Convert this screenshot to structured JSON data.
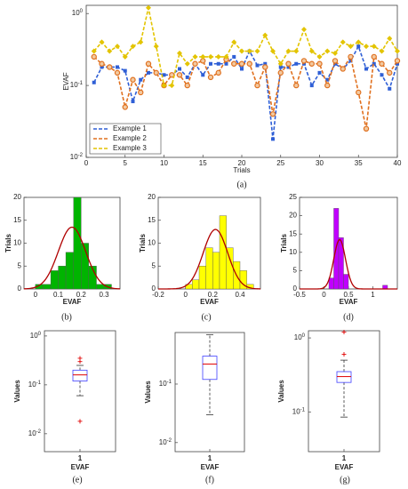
{
  "chart_data": [
    {
      "type": "line",
      "caption": "(a)",
      "xlabel": "Trials",
      "ylabel": "EVAF",
      "x": [
        1,
        2,
        3,
        4,
        5,
        6,
        7,
        8,
        9,
        10,
        11,
        12,
        13,
        14,
        15,
        16,
        17,
        18,
        19,
        20,
        21,
        22,
        23,
        24,
        25,
        26,
        27,
        28,
        29,
        30,
        31,
        32,
        33,
        34,
        35,
        36,
        37,
        38,
        39,
        40
      ],
      "xlim": [
        0,
        40
      ],
      "xticks": [
        0,
        5,
        10,
        15,
        20,
        25,
        30,
        35,
        40
      ],
      "ylim": [
        0.01,
        1.3
      ],
      "log_y": true,
      "yticks": [
        {
          "value": 0.01,
          "label": "10",
          "exponent": "-2"
        },
        {
          "value": 0.1,
          "label": "10",
          "exponent": "-1"
        },
        {
          "value": 1,
          "label": "10",
          "exponent": "0"
        }
      ],
      "legend": "lower left",
      "series": [
        {
          "name": "Example 1",
          "color": "#2f5fd6",
          "marker": "square",
          "values": [
            0.11,
            0.18,
            0.18,
            0.18,
            0.16,
            0.06,
            0.12,
            0.15,
            0.15,
            0.14,
            0.14,
            0.17,
            0.13,
            0.2,
            0.14,
            0.2,
            0.2,
            0.2,
            0.25,
            0.17,
            0.3,
            0.19,
            0.2,
            0.018,
            0.18,
            0.18,
            0.2,
            0.2,
            0.1,
            0.15,
            0.12,
            0.2,
            0.17,
            0.22,
            0.35,
            0.17,
            0.2,
            0.14,
            0.09,
            0.2
          ]
        },
        {
          "name": "Example 2",
          "color": "#e0701e",
          "marker": "circle",
          "values": [
            0.25,
            0.2,
            0.18,
            0.15,
            0.05,
            0.12,
            0.08,
            0.2,
            0.15,
            0.1,
            0.14,
            0.14,
            0.1,
            0.2,
            0.22,
            0.13,
            0.15,
            0.23,
            0.2,
            0.2,
            0.2,
            0.1,
            0.18,
            0.04,
            0.15,
            0.2,
            0.1,
            0.22,
            0.2,
            0.2,
            0.1,
            0.22,
            0.17,
            0.25,
            0.08,
            0.025,
            0.25,
            0.2,
            0.15,
            0.22
          ]
        },
        {
          "name": "Example 3",
          "color": "#e3c400",
          "marker": "diamond",
          "values": [
            0.3,
            0.4,
            0.3,
            0.35,
            0.25,
            0.35,
            0.4,
            1.2,
            0.35,
            0.1,
            0.1,
            0.28,
            0.2,
            0.25,
            0.25,
            0.25,
            0.25,
            0.25,
            0.4,
            0.3,
            0.3,
            0.3,
            0.5,
            0.3,
            0.2,
            0.3,
            0.3,
            0.6,
            0.3,
            0.25,
            0.3,
            0.28,
            0.4,
            0.35,
            0.4,
            0.35,
            0.35,
            0.3,
            0.45,
            0.3
          ]
        }
      ]
    },
    {
      "type": "histogram",
      "caption": "(b)",
      "xlabel": "EVAF",
      "ylabel": "Trials",
      "color": "#00b400",
      "bins": [
        0,
        0.033,
        0.067,
        0.1,
        0.133,
        0.167,
        0.2,
        0.233,
        0.267,
        0.3,
        0.333
      ],
      "values": [
        1,
        1,
        4,
        5,
        8,
        20,
        10,
        5,
        1,
        1
      ],
      "xlim": [
        -0.05,
        0.37
      ],
      "xticks": [
        0,
        0.1,
        0.2,
        0.3
      ],
      "ylim": [
        0,
        20
      ],
      "yticks": [
        0,
        5,
        10,
        15,
        20
      ],
      "fit": {
        "color": "#b00000",
        "mean": 0.16,
        "sd": 0.06,
        "peak": 13.5
      }
    },
    {
      "type": "histogram",
      "caption": "(c)",
      "xlabel": "EVAF",
      "ylabel": "Trials",
      "color": "#ffff00",
      "bins": [
        0,
        0.05,
        0.1,
        0.15,
        0.2,
        0.25,
        0.3,
        0.35,
        0.4,
        0.45,
        0.5
      ],
      "values": [
        1,
        2,
        5,
        9,
        8,
        16,
        9,
        6,
        4,
        1
      ],
      "xlim": [
        -0.2,
        0.55
      ],
      "xticks": [
        -0.2,
        0,
        0.2,
        0.4
      ],
      "ylim": [
        0,
        20
      ],
      "yticks": [
        0,
        5,
        10,
        15,
        20
      ],
      "fit": {
        "color": "#b00000",
        "mean": 0.22,
        "sd": 0.09,
        "peak": 13
      }
    },
    {
      "type": "histogram",
      "caption": "(d)",
      "xlabel": "EVAF",
      "ylabel": "Trials",
      "color": "#c000ff",
      "bins": [
        0.1,
        0.2,
        0.3,
        0.4,
        0.5,
        0.6,
        0.7,
        0.8,
        0.9,
        1.0,
        1.1,
        1.2,
        1.3
      ],
      "values": [
        3,
        22,
        14,
        4,
        0,
        0,
        0,
        0,
        0,
        0,
        0,
        1
      ],
      "xlim": [
        -0.5,
        1.5
      ],
      "xticks": [
        -0.5,
        0,
        0.5,
        1
      ],
      "ylim": [
        0,
        25
      ],
      "yticks": [
        0,
        5,
        10,
        15,
        20,
        25
      ],
      "fit": {
        "color": "#b00000",
        "mean": 0.32,
        "sd": 0.12,
        "peak": 13.5
      }
    },
    {
      "type": "box",
      "caption": "(e)",
      "xlabel": "EVAF",
      "ylabel": "Values",
      "categories": [
        "1"
      ],
      "ylim": [
        0.0043,
        1.28
      ],
      "log_y": true,
      "yticks": [
        {
          "value": 0.01,
          "label": "10",
          "exponent": "-2"
        },
        {
          "value": 0.1,
          "label": "10",
          "exponent": "-1"
        },
        {
          "value": 1,
          "label": "10",
          "exponent": "0"
        }
      ],
      "box": {
        "whislo": 0.06,
        "q1": 0.12,
        "med": 0.16,
        "q3": 0.2,
        "whishi": 0.25,
        "fliers": [
          0.3,
          0.35,
          0.018
        ]
      }
    },
    {
      "type": "box",
      "caption": "(f)",
      "xlabel": "EVAF",
      "ylabel": "Values",
      "categories": [
        "1"
      ],
      "ylim": [
        0.007,
        0.76
      ],
      "log_y": true,
      "yticks": [
        {
          "value": 0.01,
          "label": "10",
          "exponent": "-2"
        },
        {
          "value": 0.1,
          "label": "10",
          "exponent": "-1"
        }
      ],
      "box": {
        "whislo": 0.03,
        "q1": 0.12,
        "med": 0.22,
        "q3": 0.3,
        "whishi": 0.7,
        "fliers": []
      }
    },
    {
      "type": "box",
      "caption": "(g)",
      "xlabel": "EVAF",
      "ylabel": "Values",
      "categories": [
        "1"
      ],
      "ylim": [
        0.029,
        1.25
      ],
      "log_y": true,
      "yticks": [
        {
          "value": 0.1,
          "label": "10",
          "exponent": "-1"
        },
        {
          "value": 1,
          "label": "10",
          "exponent": "0"
        }
      ],
      "box": {
        "whislo": 0.085,
        "q1": 0.25,
        "med": 0.3,
        "q3": 0.35,
        "whishi": 0.5,
        "fliers": [
          1.2,
          0.6
        ]
      }
    }
  ]
}
